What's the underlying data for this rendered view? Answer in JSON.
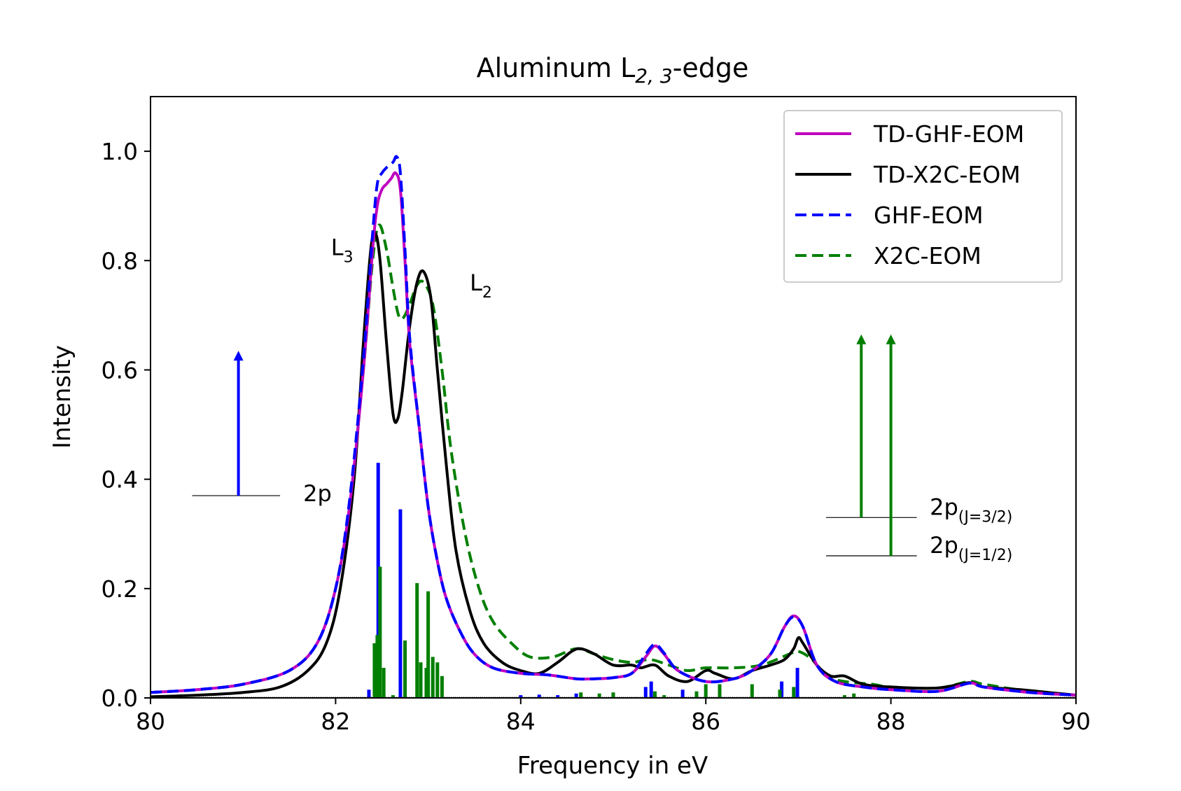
{
  "chart_data": {
    "type": "line",
    "title": "Aluminum L",
    "title_sub": "2, 3",
    "title_suffix": "-edge",
    "xlabel": "Frequency in eV",
    "ylabel": "Intensity",
    "xlim": [
      80,
      90
    ],
    "ylim": [
      0,
      1.1
    ],
    "xticks": [
      "80",
      "82",
      "84",
      "86",
      "88",
      "90"
    ],
    "yticks": [
      "0.0",
      "0.2",
      "0.4",
      "0.6",
      "0.8",
      "1.0"
    ],
    "legend_position": "top-right",
    "colors": {
      "magenta": "#bf00bf",
      "black": "#000000",
      "blue": "#0000ff",
      "green": "#007f00"
    },
    "series": [
      {
        "name": "TD-GHF-EOM",
        "color": "#bf00bf",
        "dash": "solid",
        "points": [
          [
            80,
            0.01
          ],
          [
            80.5,
            0.015
          ],
          [
            81,
            0.025
          ],
          [
            81.5,
            0.05
          ],
          [
            81.8,
            0.1
          ],
          [
            82,
            0.2
          ],
          [
            82.15,
            0.35
          ],
          [
            82.3,
            0.6
          ],
          [
            82.4,
            0.82
          ],
          [
            82.45,
            0.9
          ],
          [
            82.5,
            0.93
          ],
          [
            82.55,
            0.94
          ],
          [
            82.6,
            0.95
          ],
          [
            82.65,
            0.96
          ],
          [
            82.7,
            0.93
          ],
          [
            82.75,
            0.8
          ],
          [
            82.8,
            0.65
          ],
          [
            82.9,
            0.5
          ],
          [
            83,
            0.35
          ],
          [
            83.1,
            0.25
          ],
          [
            83.2,
            0.18
          ],
          [
            83.35,
            0.12
          ],
          [
            83.5,
            0.08
          ],
          [
            83.7,
            0.055
          ],
          [
            84,
            0.045
          ],
          [
            84.3,
            0.042
          ],
          [
            84.6,
            0.035
          ],
          [
            84.8,
            0.035
          ],
          [
            85,
            0.037
          ],
          [
            85.2,
            0.045
          ],
          [
            85.35,
            0.075
          ],
          [
            85.45,
            0.095
          ],
          [
            85.55,
            0.08
          ],
          [
            85.7,
            0.05
          ],
          [
            86,
            0.03
          ],
          [
            86.3,
            0.035
          ],
          [
            86.5,
            0.05
          ],
          [
            86.7,
            0.08
          ],
          [
            86.85,
            0.13
          ],
          [
            86.95,
            0.15
          ],
          [
            87.05,
            0.13
          ],
          [
            87.2,
            0.06
          ],
          [
            87.4,
            0.03
          ],
          [
            87.7,
            0.02
          ],
          [
            88,
            0.015
          ],
          [
            88.5,
            0.012
          ],
          [
            88.85,
            0.027
          ],
          [
            89,
            0.02
          ],
          [
            89.5,
            0.01
          ],
          [
            90,
            0.005
          ]
        ]
      },
      {
        "name": "TD-X2C-EOM",
        "color": "#000000",
        "dash": "solid",
        "points": [
          [
            80,
            0.002
          ],
          [
            80.5,
            0.005
          ],
          [
            81,
            0.01
          ],
          [
            81.4,
            0.02
          ],
          [
            81.7,
            0.05
          ],
          [
            81.9,
            0.1
          ],
          [
            82.05,
            0.2
          ],
          [
            82.2,
            0.4
          ],
          [
            82.3,
            0.65
          ],
          [
            82.38,
            0.82
          ],
          [
            82.43,
            0.85
          ],
          [
            82.48,
            0.8
          ],
          [
            82.55,
            0.65
          ],
          [
            82.62,
            0.52
          ],
          [
            82.67,
            0.51
          ],
          [
            82.72,
            0.56
          ],
          [
            82.8,
            0.68
          ],
          [
            82.88,
            0.76
          ],
          [
            82.95,
            0.78
          ],
          [
            83.03,
            0.73
          ],
          [
            83.1,
            0.6
          ],
          [
            83.2,
            0.42
          ],
          [
            83.3,
            0.27
          ],
          [
            83.45,
            0.16
          ],
          [
            83.6,
            0.1
          ],
          [
            83.8,
            0.065
          ],
          [
            84,
            0.05
          ],
          [
            84.2,
            0.045
          ],
          [
            84.4,
            0.065
          ],
          [
            84.55,
            0.085
          ],
          [
            84.65,
            0.09
          ],
          [
            84.8,
            0.08
          ],
          [
            85,
            0.06
          ],
          [
            85.2,
            0.06
          ],
          [
            85.3,
            0.055
          ],
          [
            85.45,
            0.06
          ],
          [
            85.6,
            0.04
          ],
          [
            85.8,
            0.03
          ],
          [
            86,
            0.05
          ],
          [
            86.1,
            0.045
          ],
          [
            86.3,
            0.035
          ],
          [
            86.5,
            0.05
          ],
          [
            86.7,
            0.06
          ],
          [
            86.85,
            0.07
          ],
          [
            86.95,
            0.09
          ],
          [
            87,
            0.11
          ],
          [
            87.05,
            0.1
          ],
          [
            87.2,
            0.06
          ],
          [
            87.35,
            0.04
          ],
          [
            87.5,
            0.04
          ],
          [
            87.7,
            0.025
          ],
          [
            88,
            0.02
          ],
          [
            88.5,
            0.018
          ],
          [
            88.85,
            0.028
          ],
          [
            89,
            0.02
          ],
          [
            89.4,
            0.015
          ],
          [
            89.7,
            0.01
          ],
          [
            90,
            0.005
          ]
        ]
      },
      {
        "name": "GHF-EOM",
        "color": "#0000ff",
        "dash": "dashed",
        "points": [
          [
            80,
            0.01
          ],
          [
            80.5,
            0.015
          ],
          [
            81,
            0.025
          ],
          [
            81.5,
            0.05
          ],
          [
            81.8,
            0.1
          ],
          [
            82,
            0.2
          ],
          [
            82.15,
            0.36
          ],
          [
            82.3,
            0.62
          ],
          [
            82.4,
            0.85
          ],
          [
            82.45,
            0.94
          ],
          [
            82.5,
            0.96
          ],
          [
            82.55,
            0.97
          ],
          [
            82.62,
            0.98
          ],
          [
            82.66,
            0.99
          ],
          [
            82.7,
            0.96
          ],
          [
            82.75,
            0.82
          ],
          [
            82.8,
            0.66
          ],
          [
            82.9,
            0.5
          ],
          [
            83,
            0.35
          ],
          [
            83.1,
            0.25
          ],
          [
            83.2,
            0.18
          ],
          [
            83.35,
            0.12
          ],
          [
            83.5,
            0.08
          ],
          [
            83.7,
            0.055
          ],
          [
            84,
            0.045
          ],
          [
            84.3,
            0.042
          ],
          [
            84.6,
            0.035
          ],
          [
            84.8,
            0.035
          ],
          [
            85,
            0.037
          ],
          [
            85.2,
            0.045
          ],
          [
            85.35,
            0.08
          ],
          [
            85.45,
            0.098
          ],
          [
            85.55,
            0.082
          ],
          [
            85.7,
            0.05
          ],
          [
            86,
            0.03
          ],
          [
            86.3,
            0.035
          ],
          [
            86.5,
            0.05
          ],
          [
            86.7,
            0.08
          ],
          [
            86.85,
            0.13
          ],
          [
            86.95,
            0.148
          ],
          [
            87.05,
            0.13
          ],
          [
            87.2,
            0.06
          ],
          [
            87.4,
            0.03
          ],
          [
            87.7,
            0.02
          ],
          [
            88,
            0.015
          ],
          [
            88.5,
            0.012
          ],
          [
            88.85,
            0.027
          ],
          [
            89,
            0.02
          ],
          [
            89.5,
            0.01
          ],
          [
            90,
            0.005
          ]
        ]
      },
      {
        "name": "X2C-EOM",
        "color": "#007f00",
        "dash": "dashed",
        "points": [
          [
            80,
            0.01
          ],
          [
            80.5,
            0.015
          ],
          [
            81,
            0.025
          ],
          [
            81.5,
            0.05
          ],
          [
            81.8,
            0.1
          ],
          [
            82,
            0.2
          ],
          [
            82.15,
            0.35
          ],
          [
            82.3,
            0.6
          ],
          [
            82.4,
            0.8
          ],
          [
            82.47,
            0.865
          ],
          [
            82.55,
            0.82
          ],
          [
            82.62,
            0.75
          ],
          [
            82.68,
            0.7
          ],
          [
            82.73,
            0.695
          ],
          [
            82.8,
            0.72
          ],
          [
            82.88,
            0.755
          ],
          [
            82.95,
            0.76
          ],
          [
            83.05,
            0.72
          ],
          [
            83.15,
            0.6
          ],
          [
            83.25,
            0.45
          ],
          [
            83.4,
            0.3
          ],
          [
            83.55,
            0.2
          ],
          [
            83.7,
            0.14
          ],
          [
            83.9,
            0.1
          ],
          [
            84.1,
            0.075
          ],
          [
            84.35,
            0.075
          ],
          [
            84.6,
            0.09
          ],
          [
            84.8,
            0.08
          ],
          [
            85,
            0.07
          ],
          [
            85.2,
            0.065
          ],
          [
            85.4,
            0.07
          ],
          [
            85.6,
            0.06
          ],
          [
            85.8,
            0.05
          ],
          [
            86,
            0.055
          ],
          [
            86.3,
            0.055
          ],
          [
            86.6,
            0.06
          ],
          [
            86.9,
            0.08
          ],
          [
            87,
            0.085
          ],
          [
            87.15,
            0.07
          ],
          [
            87.3,
            0.04
          ],
          [
            87.5,
            0.03
          ],
          [
            87.8,
            0.025
          ],
          [
            88,
            0.02
          ],
          [
            88.5,
            0.018
          ],
          [
            88.85,
            0.03
          ],
          [
            89,
            0.025
          ],
          [
            89.5,
            0.012
          ],
          [
            90,
            0.005
          ]
        ]
      }
    ],
    "stick_series": [
      {
        "color": "#0000ff",
        "sticks": [
          [
            82.36,
            0.015
          ],
          [
            82.46,
            0.43
          ],
          [
            82.7,
            0.345
          ],
          [
            84.0,
            0.005
          ],
          [
            84.2,
            0.006
          ],
          [
            84.4,
            0.005
          ],
          [
            84.6,
            0.008
          ],
          [
            85.35,
            0.02
          ],
          [
            85.41,
            0.03
          ],
          [
            85.75,
            0.015
          ],
          [
            86.82,
            0.03
          ],
          [
            86.99,
            0.055
          ]
        ]
      },
      {
        "color": "#007f00",
        "sticks": [
          [
            82.42,
            0.1
          ],
          [
            82.45,
            0.115
          ],
          [
            82.48,
            0.24
          ],
          [
            82.52,
            0.055
          ],
          [
            82.62,
            0.005
          ],
          [
            82.75,
            0.105
          ],
          [
            82.88,
            0.21
          ],
          [
            82.92,
            0.065
          ],
          [
            82.98,
            0.055
          ],
          [
            83.0,
            0.195
          ],
          [
            83.05,
            0.075
          ],
          [
            83.1,
            0.065
          ],
          [
            83.15,
            0.04
          ],
          [
            84.65,
            0.01
          ],
          [
            84.85,
            0.008
          ],
          [
            85.0,
            0.01
          ],
          [
            85.45,
            0.012
          ],
          [
            85.55,
            0.005
          ],
          [
            85.9,
            0.012
          ],
          [
            86.0,
            0.025
          ],
          [
            86.15,
            0.025
          ],
          [
            86.5,
            0.025
          ],
          [
            86.8,
            0.015
          ],
          [
            86.95,
            0.02
          ],
          [
            87.5,
            0.005
          ],
          [
            87.6,
            0.008
          ]
        ]
      }
    ],
    "annotations": [
      {
        "text": "L",
        "sub": "3",
        "x": 81.95,
        "y": 0.81
      },
      {
        "text": "L",
        "sub": "2",
        "x": 83.45,
        "y": 0.745
      },
      {
        "text": "2p",
        "sub": "",
        "x": 81.65,
        "y": 0.36
      },
      {
        "text": "2p",
        "sub": "(J=3/2)",
        "x": 88.42,
        "y": 0.335
      },
      {
        "text": "2p",
        "sub": "(J=1/2)",
        "x": 88.42,
        "y": 0.265
      }
    ],
    "level_lines": [
      {
        "x1": 80.45,
        "x2": 81.4,
        "y": 0.37,
        "color": "#000000"
      },
      {
        "x1": 87.3,
        "x2": 88.28,
        "y": 0.33,
        "color": "#000000"
      },
      {
        "x1": 87.3,
        "x2": 88.28,
        "y": 0.26,
        "color": "#000000"
      }
    ],
    "arrows": [
      {
        "x": 80.95,
        "y_from": 0.37,
        "y_to": 0.635,
        "color": "#0000ff"
      },
      {
        "x": 87.68,
        "y_from": 0.33,
        "y_to": 0.665,
        "color": "#007f00"
      },
      {
        "x": 88.0,
        "y_from": 0.26,
        "y_to": 0.665,
        "color": "#007f00"
      }
    ]
  }
}
